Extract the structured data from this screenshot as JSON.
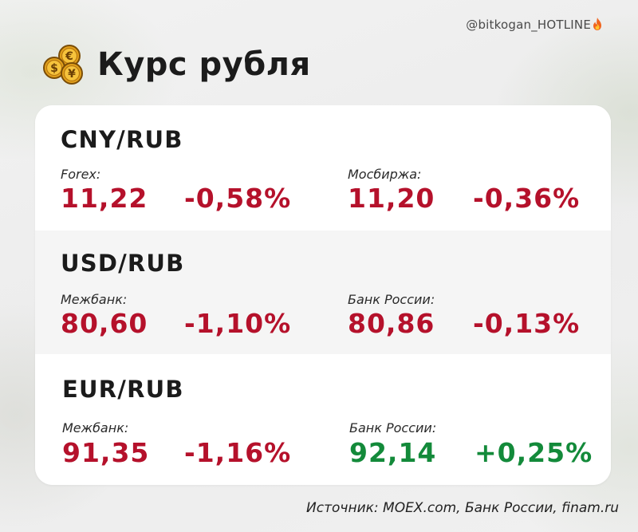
{
  "watermark": "@bitkogan_HOTLINE",
  "header": {
    "title": "Курс рубля"
  },
  "sections": [
    {
      "pair": "CNY/RUB",
      "quotes": [
        {
          "label": "Forex:",
          "value": "11,22",
          "change": "-0,58%",
          "trend": "down"
        },
        {
          "label": "Мосбиржа:",
          "value": "11,20",
          "change": "-0,36%",
          "trend": "down"
        }
      ]
    },
    {
      "pair": "USD/RUB",
      "quotes": [
        {
          "label": "Межбанк:",
          "value": "80,60",
          "change": "-1,10%",
          "trend": "down"
        },
        {
          "label": "Банк России:",
          "value": "80,86",
          "change": "-0,13%",
          "trend": "down"
        }
      ]
    },
    {
      "pair": "EUR/RUB",
      "quotes": [
        {
          "label": "Межбанк:",
          "value": "91,35",
          "change": "-1,16%",
          "trend": "down"
        },
        {
          "label": "Банк России:",
          "value": "92,14",
          "change": "+0,25%",
          "trend": "up"
        }
      ]
    }
  ],
  "footer": {
    "source": "Источник: MOEX.com, Банк России, finam.ru"
  },
  "colors": {
    "negative": "#b5112b",
    "positive": "#138a3a",
    "text": "#1b1b1b"
  },
  "icons": {
    "header": "coins-icon",
    "watermark": "fire-icon"
  }
}
